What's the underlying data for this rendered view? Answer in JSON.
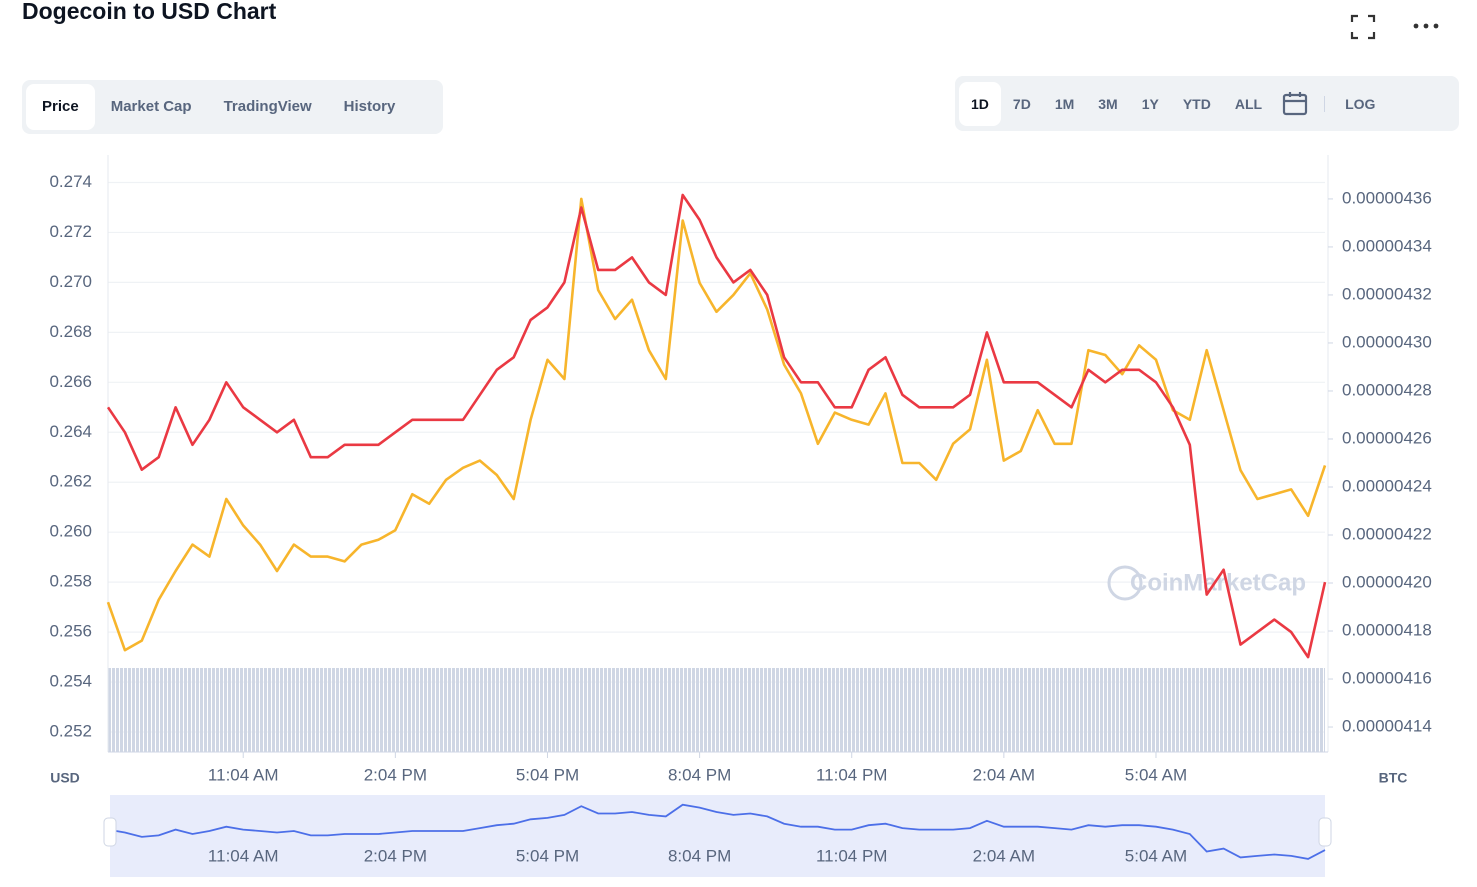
{
  "chart_data": {
    "type": "line",
    "title": "Dogecoin to USD Chart",
    "y_label": "USD",
    "y2_label": "BTC",
    "watermark": "CoinMarketCap",
    "categories": [
      null,
      null,
      null,
      null,
      null,
      null,
      null,
      null,
      "11:04 AM",
      null,
      null,
      null,
      null,
      null,
      null,
      null,
      null,
      "2:04 PM",
      null,
      null,
      null,
      null,
      null,
      null,
      null,
      null,
      "5:04 PM",
      null,
      null,
      null,
      null,
      null,
      null,
      null,
      null,
      "8:04 PM",
      null,
      null,
      null,
      null,
      null,
      null,
      null,
      null,
      "11:04 PM",
      null,
      null,
      null,
      null,
      null,
      null,
      null,
      null,
      "2:04 AM",
      null,
      null,
      null,
      null,
      null,
      null,
      null,
      null,
      "5:04 AM",
      null,
      null,
      null,
      null,
      null,
      null,
      null,
      null,
      null,
      null
    ],
    "series": [
      {
        "color": "#ea3943",
        "values": [
          0.265,
          0.264,
          0.2625,
          0.263,
          0.265,
          0.2635,
          0.2645,
          0.266,
          0.265,
          0.2645,
          0.264,
          0.2645,
          0.263,
          0.263,
          0.2635,
          0.2635,
          0.2635,
          0.264,
          0.2645,
          0.2645,
          0.2645,
          0.2645,
          0.2655,
          0.2665,
          0.267,
          0.2685,
          0.269,
          0.27,
          0.273,
          0.2705,
          0.2705,
          0.271,
          0.27,
          0.2695,
          0.2735,
          0.2725,
          0.271,
          0.27,
          0.2705,
          0.2695,
          0.267,
          0.266,
          0.266,
          0.265,
          0.265,
          0.2665,
          0.267,
          0.2655,
          0.265,
          0.265,
          0.265,
          0.2655,
          0.268,
          0.266,
          0.266,
          0.266,
          0.2655,
          0.265,
          0.2665,
          0.266,
          0.2665,
          0.2665,
          0.266,
          0.265,
          0.2635,
          0.2575,
          0.2585,
          0.2555,
          0.256,
          0.2565,
          0.256,
          0.255,
          0.258
        ]
      },
      {
        "color": "#f7b52c",
        "axis": "y2",
        "values": [
          4.192e-06,
          4.172e-06,
          4.176e-06,
          4.193e-06,
          4.205e-06,
          4.216e-06,
          4.211e-06,
          4.235e-06,
          4.224e-06,
          4.216e-06,
          4.205e-06,
          4.216e-06,
          4.211e-06,
          4.211e-06,
          4.209e-06,
          4.216e-06,
          4.218e-06,
          4.222e-06,
          4.237e-06,
          4.233e-06,
          4.243e-06,
          4.248e-06,
          4.251e-06,
          4.245e-06,
          4.235e-06,
          4.268e-06,
          4.293e-06,
          4.285e-06,
          4.36e-06,
          4.322e-06,
          4.31e-06,
          4.318e-06,
          4.297e-06,
          4.285e-06,
          4.351e-06,
          4.325e-06,
          4.313e-06,
          4.32e-06,
          4.329e-06,
          4.314e-06,
          4.291e-06,
          4.279e-06,
          4.258e-06,
          4.271e-06,
          4.268e-06,
          4.266e-06,
          4.279e-06,
          4.25e-06,
          4.25e-06,
          4.243e-06,
          4.258e-06,
          4.264e-06,
          4.293e-06,
          4.251e-06,
          4.255e-06,
          4.272e-06,
          4.258e-06,
          4.258e-06,
          4.297e-06,
          4.295e-06,
          4.287e-06,
          4.299e-06,
          4.293e-06,
          4.272e-06,
          4.268e-06,
          4.297e-06,
          4.272e-06,
          4.247e-06,
          4.235e-06,
          4.237e-06,
          4.239e-06,
          4.228e-06,
          4.249e-06
        ]
      }
    ],
    "ylim": [
      0.2512,
      0.2751
    ],
    "yticks": [
      0.252,
      0.254,
      0.256,
      0.258,
      {
        "value": 0.26,
        "label": "0.260"
      },
      0.262,
      0.264,
      0.266,
      0.268,
      {
        "value": 0.27,
        "label": "0.270"
      },
      0.272,
      0.274
    ],
    "y2lim": [
      4.1296e-06,
      4.3783e-06
    ],
    "y2ticks": [
      4.14e-06,
      4.16e-06,
      4.18e-06,
      {
        "value": 4.2e-06,
        "label": "0.00000420"
      },
      4.22e-06,
      4.24e-06,
      4.26e-06,
      4.28e-06,
      {
        "value": 4.3e-06,
        "label": "0.00000430"
      },
      4.32e-06,
      4.34e-06,
      4.36e-06
    ],
    "grid": true
  },
  "tabs": [
    "Price",
    "Market Cap",
    "TradingView",
    "History"
  ],
  "ranges": [
    "1D",
    "7D",
    "1M",
    "3M",
    "1Y",
    "YTD",
    "ALL"
  ],
  "log": "LOG"
}
